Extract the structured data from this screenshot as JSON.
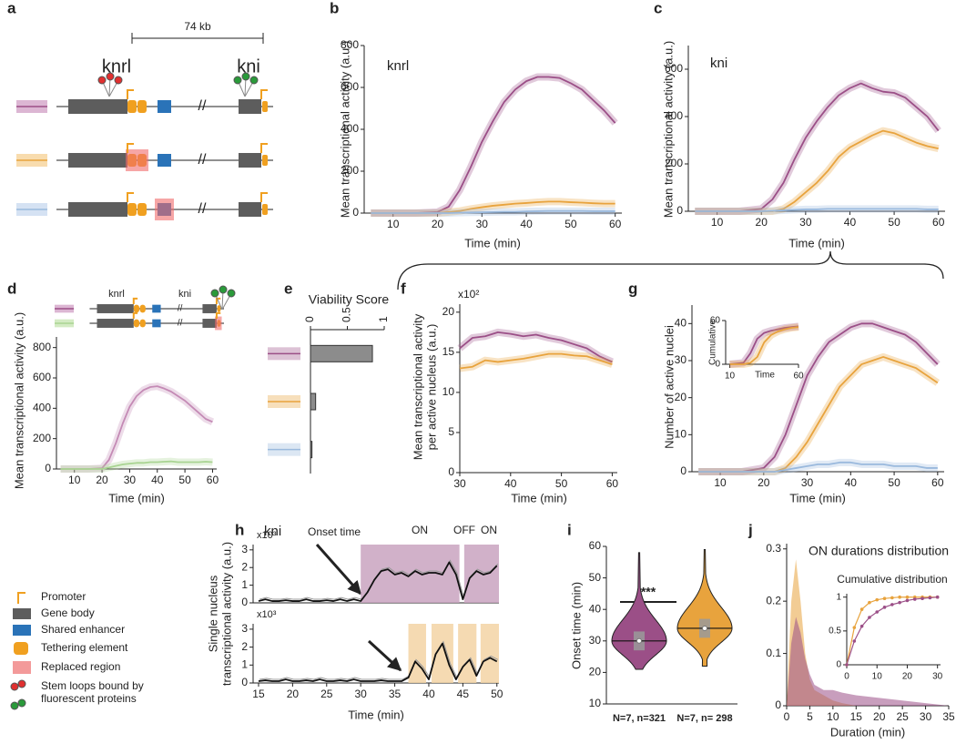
{
  "panel_labels": [
    "a",
    "b",
    "c",
    "d",
    "e",
    "f",
    "g",
    "h",
    "i",
    "j"
  ],
  "diagram_a": {
    "scale": "74 kb",
    "genes": [
      "knrl",
      "kni"
    ]
  },
  "legend": [
    "Promoter",
    "Gene body",
    "Shared enhancer",
    "Tethering element",
    "Replaced region",
    [
      "Stem loops bound by",
      "fluorescent proteins"
    ]
  ],
  "chart_data": [
    {
      "type": "line",
      "ylabel": "Mean transcriptional activity (a.u.)",
      "xlabel": "Time (min)",
      "annotations": [
        "knrl"
      ],
      "x": [
        5,
        10,
        15,
        20,
        22.5,
        25,
        27.5,
        30,
        32.5,
        35,
        37.5,
        40,
        42.5,
        45,
        47.5,
        50,
        52.5,
        55,
        57.5,
        60
      ],
      "xlim": [
        3.5,
        61.5
      ],
      "xticks": [
        10,
        20,
        30,
        40,
        50,
        60
      ],
      "ylim": [
        0,
        800
      ],
      "yticks": [
        0,
        200,
        400,
        600,
        800
      ],
      "series": [
        {
          "color": "#9b4f87",
          "values": [
            0,
            0,
            0,
            5,
            30,
            110,
            220,
            340,
            440,
            530,
            590,
            630,
            650,
            650,
            645,
            620,
            590,
            540,
            490,
            430
          ]
        },
        {
          "color": "#e8a33d",
          "values": [
            0,
            0,
            0,
            0,
            5,
            10,
            20,
            28,
            35,
            40,
            45,
            48,
            52,
            55,
            55,
            52,
            50,
            47,
            45,
            45
          ]
        },
        {
          "color": "#9ab9dd",
          "values": [
            0,
            0,
            0,
            0,
            0,
            2,
            3,
            4,
            5,
            6,
            6,
            8,
            9,
            10,
            10,
            10,
            10,
            9,
            9,
            9
          ]
        }
      ]
    },
    {
      "type": "line",
      "ylabel": "Mean transcriptional activity (a.u.)",
      "xlabel": "Time (min)",
      "annotations": [
        "kni"
      ],
      "x": [
        5,
        10,
        15,
        20,
        22.5,
        25,
        27.5,
        30,
        32.5,
        35,
        37.5,
        40,
        42.5,
        45,
        47.5,
        50,
        52.5,
        55,
        57.5,
        60
      ],
      "xlim": [
        3.5,
        61.5
      ],
      "xticks": [
        10,
        20,
        30,
        40,
        50,
        60
      ],
      "ylim": [
        0,
        700
      ],
      "yticks": [
        0,
        200,
        400,
        600
      ],
      "series": [
        {
          "color": "#9b4f87",
          "values": [
            0,
            0,
            0,
            10,
            50,
            120,
            220,
            310,
            380,
            440,
            490,
            520,
            540,
            520,
            505,
            500,
            480,
            440,
            400,
            340
          ]
        },
        {
          "color": "#e8a33d",
          "values": [
            0,
            0,
            0,
            0,
            0,
            10,
            40,
            80,
            120,
            170,
            230,
            270,
            295,
            320,
            340,
            330,
            310,
            290,
            275,
            265
          ]
        },
        {
          "color": "#9ab9dd",
          "values": [
            0,
            0,
            0,
            0,
            2,
            4,
            6,
            8,
            8,
            10,
            10,
            10,
            10,
            10,
            10,
            10,
            10,
            10,
            8,
            8
          ]
        }
      ]
    },
    {
      "type": "line",
      "ylabel": "Mean transcriptional activity (a.u.)",
      "xlabel": "Time (min)",
      "annotations": [
        "knrl",
        "kni"
      ],
      "x": [
        5,
        10,
        15,
        20,
        22.5,
        25,
        27.5,
        30,
        32.5,
        35,
        37.5,
        40,
        42.5,
        45,
        47.5,
        50,
        52.5,
        55,
        57.5,
        60
      ],
      "xlim": [
        3.5,
        61.5
      ],
      "xticks": [
        10,
        20,
        30,
        40,
        50,
        60
      ],
      "ylim": [
        0,
        870
      ],
      "yticks": [
        0,
        200,
        400,
        600,
        800
      ],
      "series": [
        {
          "color": "#c48ab5",
          "values": [
            0,
            0,
            0,
            5,
            60,
            170,
            300,
            410,
            480,
            520,
            540,
            545,
            530,
            510,
            480,
            450,
            410,
            370,
            330,
            310
          ]
        },
        {
          "color": "#a9d492",
          "values": [
            0,
            0,
            0,
            0,
            10,
            20,
            30,
            35,
            40,
            40,
            45,
            45,
            48,
            50,
            45,
            45,
            45,
            45,
            48,
            45
          ]
        }
      ]
    },
    {
      "type": "hbar",
      "title": "Viability Score",
      "values": [
        0.84,
        0.07,
        0.02
      ],
      "color": "#8c8c8c",
      "row_colors": [
        "#9b4f87",
        "#e8a33d",
        "#9ab9dd"
      ],
      "xlim": [
        0,
        1
      ],
      "xticks": [
        0,
        0.5,
        1
      ]
    },
    {
      "type": "line",
      "ylabel": [
        "Mean transcriptional activity",
        "per active nucleus (a.u.)"
      ],
      "xlabel": "Time (min)",
      "annotations": [
        "x10²"
      ],
      "x": [
        30,
        32.5,
        35,
        37.5,
        40,
        42.5,
        45,
        47.5,
        50,
        52.5,
        55,
        57.5,
        60
      ],
      "xlim": [
        30,
        61
      ],
      "xticks": [
        30,
        40,
        50,
        60
      ],
      "ylim": [
        0,
        21
      ],
      "yticks": [
        0,
        5,
        10,
        15,
        20
      ],
      "series": [
        {
          "color": "#9b4f87",
          "values": [
            15.5,
            16.8,
            17,
            17.5,
            17.3,
            17,
            17.2,
            16.8,
            16.5,
            16,
            15.5,
            14.5,
            13.8
          ]
        },
        {
          "color": "#e8a33d",
          "values": [
            13,
            13.2,
            14,
            13.8,
            14,
            14.2,
            14.5,
            14.8,
            14.8,
            14.6,
            14.5,
            14,
            13.5
          ]
        }
      ]
    },
    {
      "type": "line",
      "ylabel": "Number of active nuclei",
      "xlabel": "Time (min)",
      "x": [
        5,
        10,
        15,
        20,
        22.5,
        25,
        27.5,
        30,
        32.5,
        35,
        37.5,
        40,
        42.5,
        45,
        47.5,
        50,
        52.5,
        55,
        57.5,
        60
      ],
      "xlim": [
        3.5,
        61.5
      ],
      "xticks": [
        10,
        20,
        30,
        40,
        50,
        60
      ],
      "ylim": [
        0,
        45
      ],
      "yticks": [
        0,
        10,
        20,
        30,
        40
      ],
      "series": [
        {
          "color": "#9b4f87",
          "values": [
            0,
            0,
            0,
            1,
            4,
            10,
            18,
            26,
            31,
            35,
            37,
            39,
            40,
            40,
            39,
            38,
            37,
            35,
            32,
            29
          ]
        },
        {
          "color": "#e8a33d",
          "values": [
            0,
            0,
            0,
            0,
            0,
            1,
            4,
            8,
            13,
            18,
            23,
            26,
            29,
            30,
            31,
            30,
            29,
            28,
            26,
            24
          ]
        },
        {
          "color": "#9ab9dd",
          "values": [
            0,
            0,
            0,
            0,
            0,
            0.5,
            1,
            1.5,
            2,
            2,
            2.5,
            2.5,
            2,
            2,
            2,
            1.5,
            1.5,
            1.5,
            1,
            1
          ]
        }
      ]
    },
    {
      "type": "line",
      "ylabel": "Cumulative",
      "xlabel": "Time",
      "x": [
        10,
        20,
        25,
        30,
        35,
        40,
        45,
        50,
        55,
        60
      ],
      "xlim": [
        7,
        60
      ],
      "xticks": [
        10,
        60
      ],
      "ylim": [
        0,
        60
      ],
      "yticks": [
        0,
        60
      ],
      "series": [
        {
          "color": "#9b4f87",
          "values": [
            0,
            2,
            15,
            35,
            43,
            46,
            48,
            50,
            51,
            52
          ]
        },
        {
          "color": "#e8a33d",
          "values": [
            0,
            0,
            2,
            10,
            30,
            40,
            45,
            48,
            50,
            51
          ]
        }
      ]
    },
    {
      "type": "line",
      "ylabel": [
        "Single nucleus",
        "transcriptional activity (a.u.)"
      ],
      "annotations": [
        "kni",
        "x10³",
        "Onset time",
        "ON",
        "OFF",
        "ON"
      ],
      "x": [
        15,
        16,
        17,
        18,
        19,
        20,
        21,
        22,
        23,
        24,
        25,
        26,
        27,
        28,
        29,
        30,
        31,
        32,
        33,
        34,
        35,
        36,
        37,
        38,
        39,
        40,
        41,
        42,
        43,
        44,
        45,
        46,
        47,
        48,
        49,
        50
      ],
      "xlim": [
        14.2,
        50.3
      ],
      "ylim": [
        0,
        3.3
      ],
      "yticks": [
        0,
        1,
        2,
        3
      ],
      "on_periods": [
        [
          30,
          44.5
        ],
        [
          45.2,
          50.3
        ]
      ],
      "period_color": "#c9a3c0",
      "series": [
        {
          "color": "#111111",
          "values": [
            0.1,
            0.2,
            0.1,
            0.1,
            0.15,
            0.1,
            0.1,
            0.2,
            0.1,
            0.1,
            0.15,
            0.1,
            0.2,
            0.1,
            0.2,
            0.1,
            0.6,
            1.3,
            1.8,
            1.9,
            1.6,
            1.7,
            1.5,
            1.8,
            1.6,
            1.7,
            1.7,
            1.6,
            2.3,
            1.6,
            0.2,
            1.4,
            1.8,
            1.6,
            1.7,
            2.1
          ]
        }
      ]
    },
    {
      "type": "line",
      "xlabel": "Time (min)",
      "annotations": [
        "x10³"
      ],
      "x": [
        15,
        16,
        17,
        18,
        19,
        20,
        21,
        22,
        23,
        24,
        25,
        26,
        27,
        28,
        29,
        30,
        31,
        32,
        33,
        34,
        35,
        36,
        37,
        38,
        39,
        40,
        41,
        42,
        43,
        44,
        45,
        46,
        47,
        48,
        49,
        50
      ],
      "xlim": [
        14.2,
        50.3
      ],
      "xticks": [
        15,
        20,
        25,
        30,
        35,
        40,
        45,
        50
      ],
      "ylim": [
        0,
        3.3
      ],
      "yticks": [
        0,
        1,
        2,
        3
      ],
      "on_periods": [
        [
          37,
          39.6
        ],
        [
          40.4,
          43.6
        ],
        [
          44.3,
          47
        ],
        [
          47.6,
          50.3
        ]
      ],
      "period_color": "#f3d3a5",
      "series": [
        {
          "color": "#111111",
          "values": [
            0.1,
            0.15,
            0.1,
            0.1,
            0.2,
            0.1,
            0.1,
            0.15,
            0.1,
            0.2,
            0.1,
            0.1,
            0.15,
            0.1,
            0.2,
            0.1,
            0.1,
            0.1,
            0.15,
            0.1,
            0.1,
            0.1,
            0.3,
            1.2,
            0.8,
            0.2,
            1.6,
            2.2,
            1.0,
            0.2,
            0.9,
            1.3,
            0.4,
            1.2,
            1.4,
            1.2
          ]
        }
      ]
    },
    {
      "type": "violin",
      "ylabel": "Onset time (min)",
      "annotations": [
        "***"
      ],
      "ylim": [
        10,
        60
      ],
      "yticks": [
        10,
        20,
        30,
        40,
        50,
        60
      ],
      "groups": [
        {
          "label": "N=7, n=321",
          "color": "#9b4f87",
          "min": 21,
          "q1": 27,
          "median": 30,
          "q3": 33,
          "max": 58
        },
        {
          "label": "N=7, n= 298",
          "color": "#e8a33d",
          "min": 22,
          "q1": 31,
          "median": 34,
          "q3": 37,
          "max": 59
        }
      ]
    },
    {
      "type": "area",
      "title": "ON durations distribution",
      "xlabel": "Duration (min)",
      "x": [
        0,
        1,
        2,
        3,
        4,
        5,
        6,
        8,
        10,
        12,
        15,
        20,
        25,
        30,
        35
      ],
      "xlim": [
        0,
        35
      ],
      "xticks": [
        0,
        5,
        10,
        15,
        20,
        25,
        30,
        35
      ],
      "ylim": [
        0,
        0.31
      ],
      "yticks": [
        0,
        0.1,
        0.2,
        0.3
      ],
      "series": [
        {
          "color": "#e8a33d",
          "values": [
            0,
            0.2,
            0.28,
            0.2,
            0.1,
            0.05,
            0.03,
            0.02,
            0.01,
            0.005,
            0,
            0,
            0,
            0,
            0
          ]
        },
        {
          "color": "#9b4f87",
          "values": [
            0,
            0.12,
            0.17,
            0.14,
            0.09,
            0.06,
            0.04,
            0.03,
            0.03,
            0.025,
            0.02,
            0.015,
            0.01,
            0.005,
            0
          ]
        }
      ]
    },
    {
      "type": "line",
      "title": "Cumulative distribution",
      "markers": true,
      "x": [
        0,
        2.5,
        5,
        7.5,
        10,
        12.5,
        15,
        17.5,
        20,
        22.5,
        25,
        27.5,
        30
      ],
      "xlim": [
        0,
        31
      ],
      "xticks": [
        0,
        10,
        20,
        30
      ],
      "ylim": [
        0,
        1.05
      ],
      "yticks": [
        0,
        0.5,
        1
      ],
      "series": [
        {
          "color": "#e8a33d",
          "values": [
            0,
            0.55,
            0.82,
            0.92,
            0.96,
            0.98,
            0.99,
            1,
            1,
            1,
            1,
            1,
            1
          ]
        },
        {
          "color": "#9b4f87",
          "values": [
            0,
            0.35,
            0.57,
            0.7,
            0.78,
            0.85,
            0.89,
            0.92,
            0.95,
            0.97,
            0.98,
            0.99,
            1
          ]
        }
      ]
    }
  ]
}
